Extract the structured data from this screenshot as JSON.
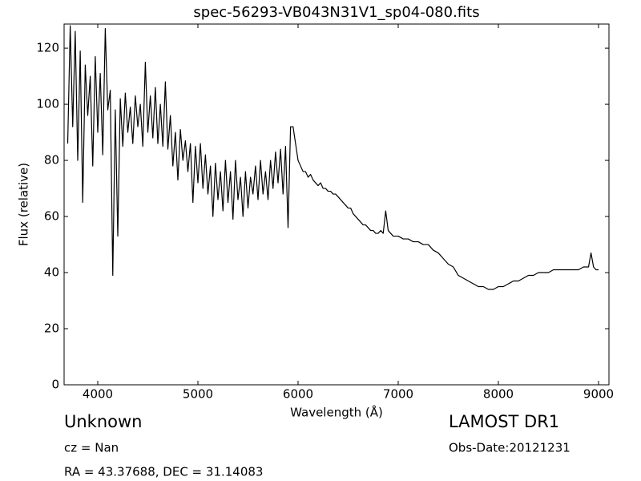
{
  "chart_data": {
    "type": "line",
    "title": "spec-56293-VB043N31V1_sp04-080.fits",
    "x_label": "Wavelength (Å)",
    "y_label": "Flux (relative)",
    "annotations": [
      "Unknown",
      "cz = Nan",
      "RA = 43.37688, DEC = 31.14083",
      "LAMOST DR1",
      "Obs-Date:20121231"
    ],
    "color": "#000000",
    "xlim": [
      3664,
      9104
    ],
    "ylim": [
      0,
      128.6
    ],
    "xticks": [
      4000,
      5000,
      6000,
      7000,
      8000,
      9000
    ],
    "yticks": [
      0,
      20,
      40,
      60,
      80,
      100,
      120
    ],
    "x": [
      3700,
      3725,
      3750,
      3775,
      3800,
      3825,
      3850,
      3875,
      3900,
      3925,
      3950,
      3975,
      4000,
      4025,
      4050,
      4075,
      4100,
      4125,
      4150,
      4175,
      4200,
      4225,
      4250,
      4275,
      4300,
      4325,
      4350,
      4375,
      4400,
      4425,
      4450,
      4475,
      4500,
      4525,
      4550,
      4575,
      4600,
      4625,
      4650,
      4675,
      4700,
      4725,
      4750,
      4775,
      4800,
      4825,
      4850,
      4875,
      4900,
      4925,
      4950,
      4975,
      5000,
      5025,
      5050,
      5075,
      5100,
      5125,
      5150,
      5175,
      5200,
      5225,
      5250,
      5275,
      5300,
      5325,
      5350,
      5375,
      5400,
      5425,
      5450,
      5475,
      5500,
      5525,
      5550,
      5575,
      5600,
      5625,
      5650,
      5675,
      5700,
      5725,
      5750,
      5775,
      5800,
      5825,
      5850,
      5875,
      5900,
      5925,
      5950,
      5975,
      6000,
      6025,
      6050,
      6075,
      6100,
      6125,
      6150,
      6175,
      6200,
      6225,
      6250,
      6275,
      6300,
      6325,
      6350,
      6375,
      6400,
      6425,
      6450,
      6475,
      6500,
      6525,
      6550,
      6575,
      6600,
      6625,
      6650,
      6675,
      6700,
      6725,
      6750,
      6775,
      6800,
      6825,
      6850,
      6875,
      6900,
      6950,
      7000,
      7050,
      7100,
      7150,
      7200,
      7250,
      7300,
      7350,
      7400,
      7450,
      7500,
      7550,
      7600,
      7650,
      7700,
      7750,
      7800,
      7850,
      7900,
      7950,
      8000,
      8050,
      8100,
      8150,
      8200,
      8250,
      8300,
      8350,
      8400,
      8450,
      8500,
      8550,
      8600,
      8650,
      8700,
      8750,
      8800,
      8850,
      8900,
      8925,
      8950,
      8975,
      9000
    ],
    "values": [
      86,
      128,
      92,
      126,
      80,
      119,
      65,
      114,
      96,
      110,
      78,
      117,
      90,
      111,
      82,
      127,
      98,
      105,
      39,
      98,
      53,
      102,
      85,
      104,
      90,
      99,
      86,
      103,
      92,
      100,
      85,
      115,
      90,
      103,
      88,
      106,
      86,
      100,
      85,
      108,
      84,
      96,
      78,
      90,
      73,
      91,
      80,
      87,
      76,
      86,
      65,
      85,
      72,
      86,
      70,
      82,
      68,
      78,
      60,
      79,
      66,
      76,
      62,
      80,
      65,
      76,
      59,
      80,
      66,
      74,
      60,
      76,
      63,
      74,
      68,
      78,
      66,
      80,
      68,
      76,
      66,
      80,
      70,
      83,
      72,
      84,
      68,
      85,
      56,
      92,
      92,
      86,
      80,
      78,
      76,
      76,
      74,
      75,
      73,
      72,
      71,
      72,
      70,
      70,
      69,
      69,
      68,
      68,
      67,
      66,
      65,
      64,
      63,
      63,
      61,
      60,
      59,
      58,
      57,
      57,
      56,
      55,
      55,
      54,
      54,
      55,
      54,
      62,
      55,
      53,
      53,
      52,
      52,
      51,
      51,
      50,
      50,
      48,
      47,
      45,
      43,
      42,
      39,
      38,
      37,
      36,
      35,
      35,
      34,
      34,
      35,
      35,
      36,
      37,
      37,
      38,
      39,
      39,
      40,
      40,
      40,
      41,
      41,
      41,
      41,
      41,
      41,
      42,
      42,
      47,
      42,
      41,
      41
    ]
  }
}
